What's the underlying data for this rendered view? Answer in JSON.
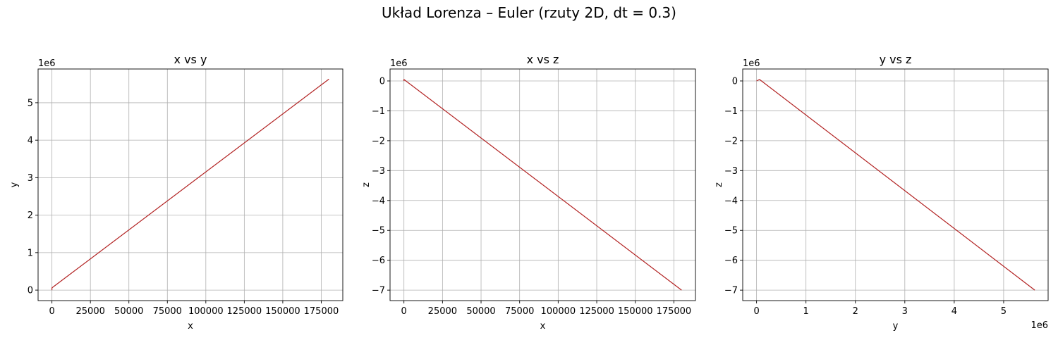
{
  "figure": {
    "suptitle": "Układ Lorenza – Euler (rzuty 2D, dt = 0.3)"
  },
  "chart_data": [
    {
      "type": "line",
      "title": "x vs y",
      "xlabel": "x",
      "ylabel": "y",
      "x_ticks": [
        0,
        25000,
        50000,
        75000,
        100000,
        125000,
        150000,
        175000
      ],
      "x_tick_labels": [
        "0",
        "25000",
        "50000",
        "75000",
        "100000",
        "125000",
        "150000",
        "175000"
      ],
      "y_ticks": [
        0,
        1,
        2,
        3,
        4,
        5
      ],
      "y_tick_labels": [
        "0",
        "1",
        "2",
        "3",
        "4",
        "5"
      ],
      "x_offset_text": "",
      "y_offset_text": "1e6",
      "xlim": [
        -9000,
        189000
      ],
      "ylim": [
        -0.28,
        5.9
      ],
      "grid": true,
      "color": "#b22222",
      "x": [
        0,
        0,
        180000
      ],
      "y": [
        0,
        0.06,
        5.63
      ]
    },
    {
      "type": "line",
      "title": "x vs z",
      "xlabel": "x",
      "ylabel": "z",
      "x_ticks": [
        0,
        25000,
        50000,
        75000,
        100000,
        125000,
        150000,
        175000
      ],
      "x_tick_labels": [
        "0",
        "25000",
        "50000",
        "75000",
        "100000",
        "125000",
        "150000",
        "175000"
      ],
      "y_ticks": [
        0,
        -1,
        -2,
        -3,
        -4,
        -5,
        -6,
        -7
      ],
      "y_tick_labels": [
        "0",
        "−1",
        "−2",
        "−3",
        "−4",
        "−5",
        "−6",
        "−7"
      ],
      "x_offset_text": "",
      "y_offset_text": "1e6",
      "xlim": [
        -9000,
        189000
      ],
      "ylim": [
        -7.35,
        0.4
      ],
      "grid": true,
      "color": "#b22222",
      "x": [
        0,
        0,
        180000
      ],
      "y": [
        0,
        0.05,
        -7.0
      ]
    },
    {
      "type": "line",
      "title": "y vs z",
      "xlabel": "y",
      "ylabel": "z",
      "x_ticks": [
        0,
        1,
        2,
        3,
        4,
        5
      ],
      "x_tick_labels": [
        "0",
        "1",
        "2",
        "3",
        "4",
        "5"
      ],
      "y_ticks": [
        0,
        -1,
        -2,
        -3,
        -4,
        -5,
        -6,
        -7
      ],
      "y_tick_labels": [
        "0",
        "−1",
        "−2",
        "−3",
        "−4",
        "−5",
        "−6",
        "−7"
      ],
      "x_offset_text": "1e6",
      "y_offset_text": "1e6",
      "xlim": [
        -0.28,
        5.9
      ],
      "ylim": [
        -7.35,
        0.4
      ],
      "grid": true,
      "color": "#b22222",
      "x": [
        0,
        0.06,
        5.63
      ],
      "y": [
        0,
        0.05,
        -7.0
      ]
    }
  ]
}
